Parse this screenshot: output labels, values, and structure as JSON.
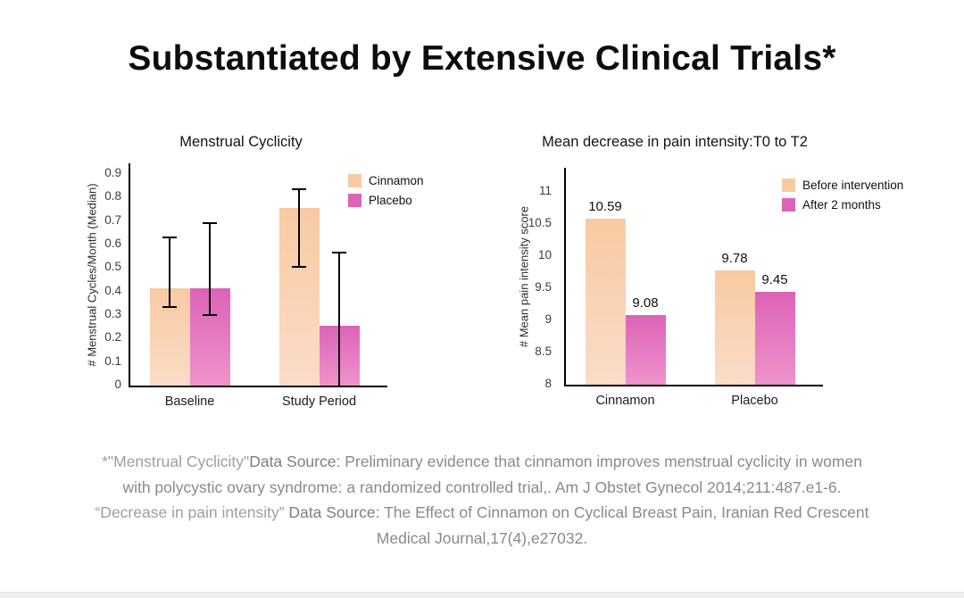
{
  "header": {
    "title": "Substantiated by Extensive Clinical Trials*"
  },
  "chart_data": [
    {
      "type": "bar",
      "title": "Menstrual Cyclicity",
      "ylabel": "# Menstrual Cycles/Month (Median)",
      "categories": [
        "Baseline",
        "Study Period"
      ],
      "series": [
        {
          "name": "Cinnamon",
          "values": [
            0.415,
            0.755
          ],
          "error_low": [
            0.335,
            0.505
          ],
          "error_high": [
            0.63,
            0.835
          ],
          "color_top": "#f8caa2",
          "color_bottom": "#fbdcc8"
        },
        {
          "name": "Placebo",
          "values": [
            0.415,
            0.255
          ],
          "error_low": [
            0.3,
            0
          ],
          "error_high": [
            0.69,
            0.565
          ],
          "color_top": "#dc63b7",
          "color_bottom": "#ef93cb"
        }
      ],
      "ylim": [
        0,
        0.9458
      ],
      "ytick_values": [
        0,
        0.1,
        0.2,
        0.3,
        0.4,
        0.5,
        0.6,
        0.7,
        0.8,
        0.9
      ],
      "ytick_labels": [
        "0",
        "0.1",
        "0.2",
        "0.3",
        "0.4",
        "0.5",
        "0.6",
        "0.7",
        "0.8",
        "0.9"
      ],
      "grid": false,
      "legend_position": "top-right",
      "error_bars": true,
      "data_labels": false
    },
    {
      "type": "bar",
      "title": "Mean decrease in pain intensity:T0 to T2",
      "ylabel": "# Mean pain intensity score",
      "categories": [
        "Cinnamon",
        "Placebo"
      ],
      "series": [
        {
          "name": "Before intervention",
          "values": [
            10.59,
            9.78
          ],
          "color_top": "#f8caa2",
          "color_bottom": "#fbdcc8"
        },
        {
          "name": "After 2 months",
          "values": [
            9.08,
            9.45
          ],
          "color_top": "#dc63b7",
          "color_bottom": "#ef93cb"
        }
      ],
      "ylim": [
        8,
        11.375
      ],
      "ytick_values": [
        8,
        8.5,
        9,
        9.5,
        10,
        10.5,
        11
      ],
      "ytick_labels": [
        "8",
        "8.5",
        "9",
        "9.5",
        "10",
        "10.5",
        "11"
      ],
      "data_label_values": [
        "10.59",
        "9.08",
        "9.78",
        "9.45"
      ],
      "grid": false,
      "legend_position": "top-right",
      "error_bars": false,
      "data_labels": true
    }
  ],
  "footer": {
    "lines": [
      {
        "segments": [
          {
            "text": "*\"Menstrual Cyclicity\"",
            "style": "quote"
          },
          {
            "text": "Data Source:",
            "style": "label"
          },
          {
            "text": "  Preliminary evidence that cinnamon improves menstrual cyclicity in women",
            "style": "normal"
          }
        ]
      },
      {
        "segments": [
          {
            "text": "with polycystic ovary syndrome: a randomized controlled trial,. Am J Obstet Gynecol 2014;211:487.e1-6.",
            "style": "normal"
          }
        ]
      },
      {
        "segments": [
          {
            "text": "“Decrease in pain intensity”",
            "style": "quote"
          },
          {
            "text": " Data Source:",
            "style": "label"
          },
          {
            "text": "  The Effect of Cinnamon on Cyclical Breast Pain, Iranian Red Crescent",
            "style": "normal"
          }
        ]
      },
      {
        "segments": [
          {
            "text": "Medical Journal,17(4),e27032.",
            "style": "normal"
          }
        ]
      }
    ]
  }
}
